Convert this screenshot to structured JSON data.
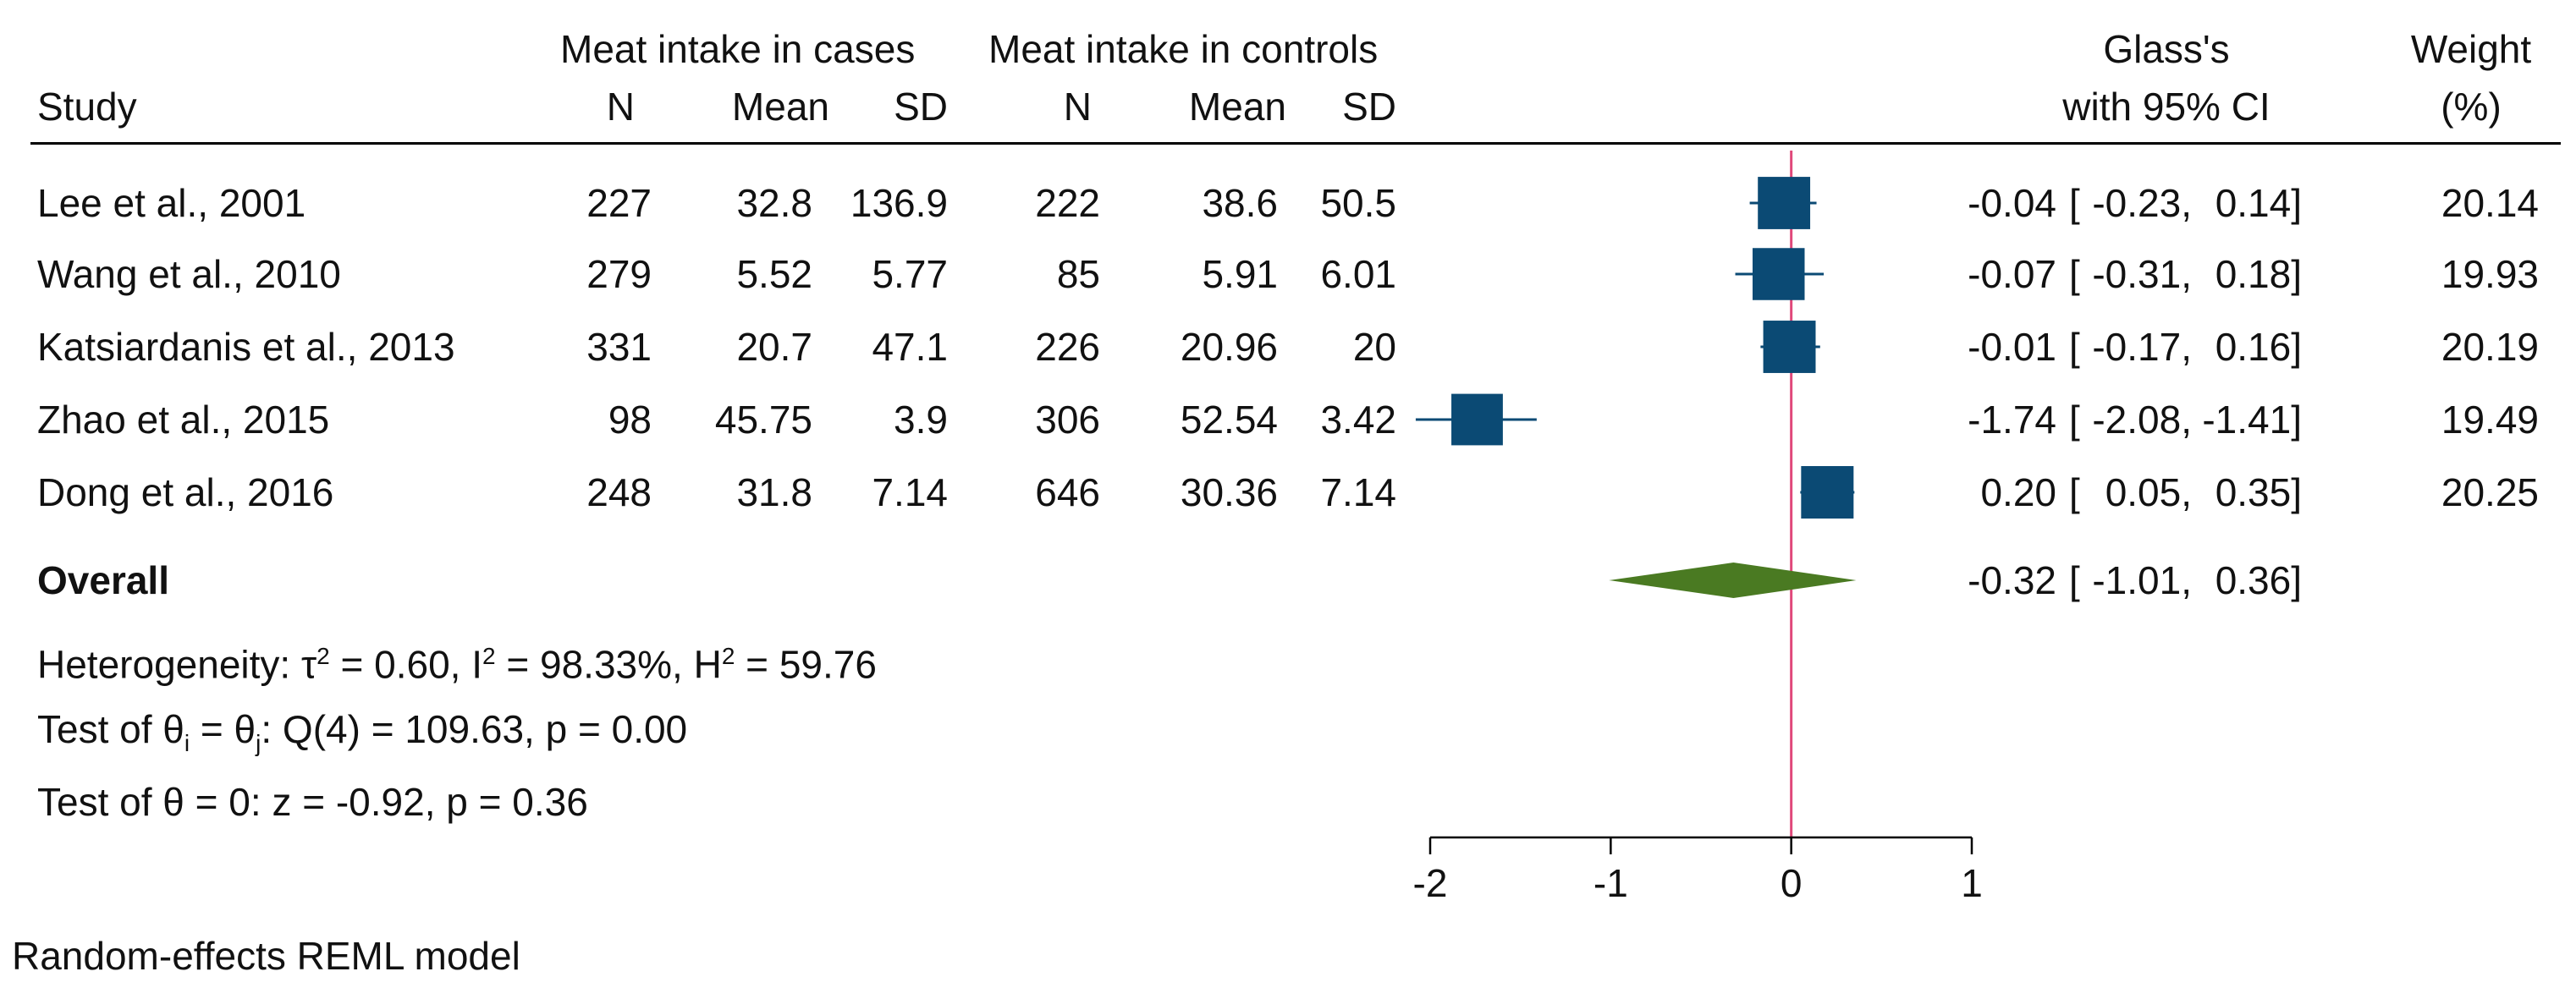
{
  "header": {
    "group_cases": "Meat intake in cases",
    "group_controls": "Meat intake in controls",
    "study": "Study",
    "n": "N",
    "mean": "Mean",
    "sd": "SD",
    "effect_line1": "Glass's",
    "effect_line2": "with 95% CI",
    "weight_line1": "Weight",
    "weight_line2": "(%)"
  },
  "rows": [
    {
      "study": "Lee et al., 2001",
      "n1": "227",
      "mean1": "32.8",
      "sd1": "136.9",
      "n2": "222",
      "mean2": "38.6",
      "sd2": "50.5",
      "es": "-0.04",
      "lo": "-0.23,",
      "hi": "0.14]",
      "weight": "20.14"
    },
    {
      "study": "Wang et al., 2010",
      "n1": "279",
      "mean1": "5.52",
      "sd1": "5.77",
      "n2": "85",
      "mean2": "5.91",
      "sd2": "6.01",
      "es": "-0.07",
      "lo": "-0.31,",
      "hi": "0.18]",
      "weight": "19.93"
    },
    {
      "study": "Katsiardanis et al., 2013",
      "n1": "331",
      "mean1": "20.7",
      "sd1": "47.1",
      "n2": "226",
      "mean2": "20.96",
      "sd2": "20",
      "es": "-0.01",
      "lo": "-0.17,",
      "hi": "0.16]",
      "weight": "20.19"
    },
    {
      "study": "Zhao et al., 2015",
      "n1": "98",
      "mean1": "45.75",
      "sd1": "3.9",
      "n2": "306",
      "mean2": "52.54",
      "sd2": "3.42",
      "es": "-1.74",
      "lo": "-2.08,",
      "hi": "-1.41]",
      "weight": "19.49"
    },
    {
      "study": "Dong et al., 2016",
      "n1": "248",
      "mean1": "31.8",
      "sd1": "7.14",
      "n2": "646",
      "mean2": "30.36",
      "sd2": "7.14",
      "es": "0.20",
      "lo": "0.05,",
      "hi": "0.35]",
      "weight": "20.25"
    }
  ],
  "overall": {
    "label": "Overall",
    "es": "-0.32",
    "lo": "-1.01,",
    "hi": "0.36]"
  },
  "stats": {
    "heterogeneity": {
      "prefix": "Heterogeneity: τ",
      "tau_exp": "2",
      "tau_rest": " = 0.60, I",
      "i_exp": "2",
      "i_rest": " = 98.33%, H",
      "h_exp": "2",
      "h_rest": " = 59.76"
    },
    "test_theta_i": {
      "prefix": "Test of θ",
      "sub_i": "i",
      "mid": " = θ",
      "sub_j": "j",
      "rest": ": Q(4) = 109.63, p = 0.00"
    },
    "test_theta_0": "Test of θ = 0: z = -0.92, p = 0.36"
  },
  "bracket_open": "[",
  "footnote": "Random-effects REML model",
  "colors": {
    "marker": "#0b4a74",
    "diamond": "#4a7a22",
    "null_line": "#e0487a",
    "axis": "#000000"
  },
  "chart_data": {
    "type": "forest",
    "effect_measure": "Glass's Δ",
    "categories": [
      "Lee et al., 2001",
      "Wang et al., 2010",
      "Katsiardanis et al., 2013",
      "Zhao et al., 2015",
      "Dong et al., 2016"
    ],
    "values": [
      -0.04,
      -0.07,
      -0.01,
      -1.74,
      0.2
    ],
    "ci_lower": [
      -0.23,
      -0.31,
      -0.17,
      -2.08,
      0.05
    ],
    "ci_upper": [
      0.14,
      0.18,
      0.16,
      -1.41,
      0.35
    ],
    "weights_pct": [
      20.14,
      19.93,
      20.19,
      19.49,
      20.25
    ],
    "overall": {
      "value": -0.32,
      "ci_lower": -1.01,
      "ci_upper": 0.36
    },
    "null_value": 0,
    "xlim": [
      -2,
      1
    ],
    "xticks": [
      -2,
      -1,
      0,
      1
    ],
    "xtick_labels": [
      "-2",
      "-1",
      "0",
      "1"
    ],
    "grid": false,
    "legend": "none"
  }
}
